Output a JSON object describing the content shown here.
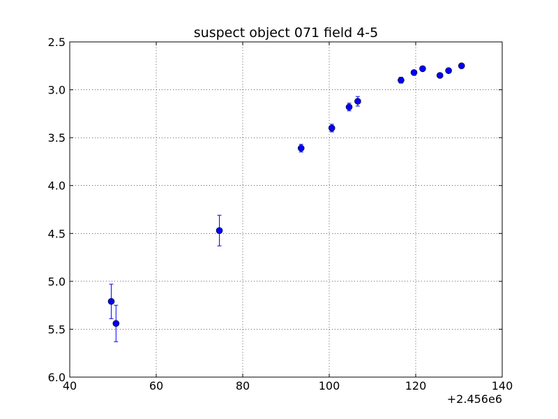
{
  "chart_data": {
    "type": "scatter",
    "title": "suspect object 071 field 4-5",
    "xlabel": "",
    "ylabel": "",
    "x_offset_label": "+2.456e6",
    "xlim": [
      40,
      140
    ],
    "ylim": [
      2.5,
      6.0
    ],
    "y_inverted": true,
    "x_ticks": [
      40,
      60,
      80,
      100,
      120,
      140
    ],
    "x_tick_labels": [
      "40",
      "60",
      "80",
      "100",
      "120",
      "140"
    ],
    "y_ticks": [
      2.5,
      3.0,
      3.5,
      4.0,
      4.5,
      5.0,
      5.5,
      6.0
    ],
    "y_tick_labels": [
      "2.5",
      "3.0",
      "3.5",
      "4.0",
      "4.5",
      "5.0",
      "5.5",
      "6.0"
    ],
    "grid": true,
    "marker_color": "#0000ff",
    "errorbar_color": "#0000ff",
    "points": [
      {
        "x": 49.6,
        "y": 5.21,
        "yerr": 0.18
      },
      {
        "x": 50.7,
        "y": 5.44,
        "yerr": 0.19
      },
      {
        "x": 74.6,
        "y": 4.47,
        "yerr": 0.16
      },
      {
        "x": 93.5,
        "y": 3.61,
        "yerr": 0.04
      },
      {
        "x": 100.6,
        "y": 3.4,
        "yerr": 0.04
      },
      {
        "x": 104.6,
        "y": 3.18,
        "yerr": 0.04
      },
      {
        "x": 106.6,
        "y": 3.12,
        "yerr": 0.05
      },
      {
        "x": 116.6,
        "y": 2.9,
        "yerr": 0.03
      },
      {
        "x": 119.6,
        "y": 2.82,
        "yerr": 0.02
      },
      {
        "x": 121.6,
        "y": 2.78,
        "yerr": 0.02
      },
      {
        "x": 125.6,
        "y": 2.85,
        "yerr": 0.02
      },
      {
        "x": 127.6,
        "y": 2.8,
        "yerr": 0.02
      },
      {
        "x": 130.6,
        "y": 2.75,
        "yerr": 0.02
      }
    ]
  }
}
